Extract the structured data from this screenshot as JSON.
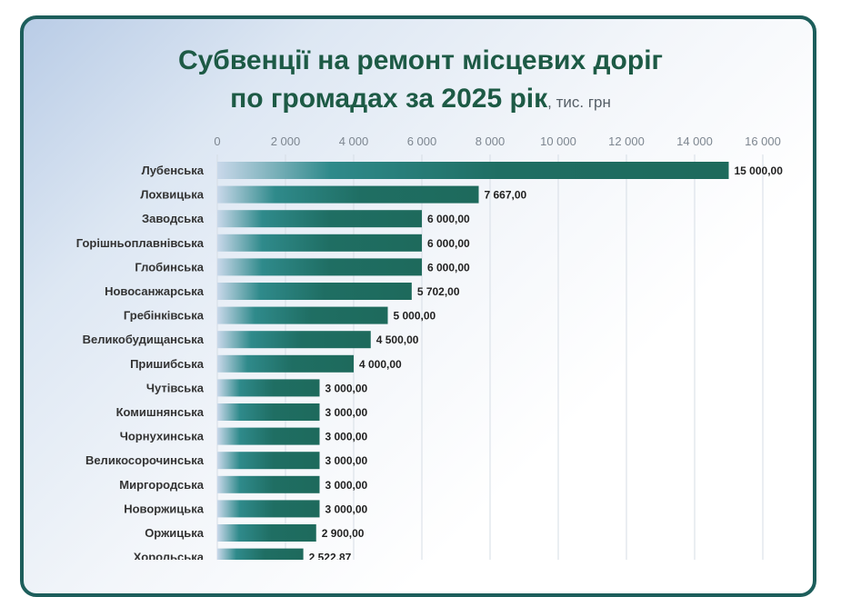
{
  "title_line1": "Субвенції на ремонт місцевих доріг",
  "title_line2": "по громадах за 2025 рік",
  "unit": ", тис. грн",
  "colors": {
    "border": "#1d5e5b",
    "title": "#1d5a45",
    "bar_dark": "#1e6a5c",
    "bar_mid": "#2f8a8b",
    "bar_light": "#c9d8ea"
  },
  "chart_data": {
    "type": "bar",
    "orientation": "horizontal",
    "title": "Субвенції на ремонт місцевих доріг по громадах за 2025 рік",
    "unit": "тис. грн",
    "xlim": [
      0,
      16000
    ],
    "ticks": [
      "0",
      "2 000",
      "4 000",
      "6 000",
      "8 000",
      "10 000",
      "12 000",
      "14 000",
      "16 000"
    ],
    "tick_values": [
      0,
      2000,
      4000,
      6000,
      8000,
      10000,
      12000,
      14000,
      16000
    ],
    "grid": true,
    "categories": [
      "Лубенська",
      "Лохвицька",
      "Заводська",
      "Горішньоплавнівська",
      "Глобинська",
      "Новосанжарська",
      "Гребінківська",
      "Великобудищанська",
      "Пришибська",
      "Чутівська",
      "Комишнянська",
      "Чорнухинська",
      "Великосорочинська",
      "Миргородська",
      "Новоржицька",
      "Оржицька",
      "Хорольська"
    ],
    "values": [
      15000,
      7667,
      6000,
      6000,
      6000,
      5702,
      5000,
      4500,
      4000,
      3000,
      3000,
      3000,
      3000,
      3000,
      3000,
      2900,
      2522.87
    ],
    "value_labels": [
      "15 000,00",
      "7 667,00",
      "6 000,00",
      "6 000,00",
      "6 000,00",
      "5 702,00",
      "5 000,00",
      "4 500,00",
      "4 000,00",
      "3 000,00",
      "3 000,00",
      "3 000,00",
      "3 000,00",
      "3 000,00",
      "3 000,00",
      "2 900,00",
      "2 522,87"
    ]
  }
}
